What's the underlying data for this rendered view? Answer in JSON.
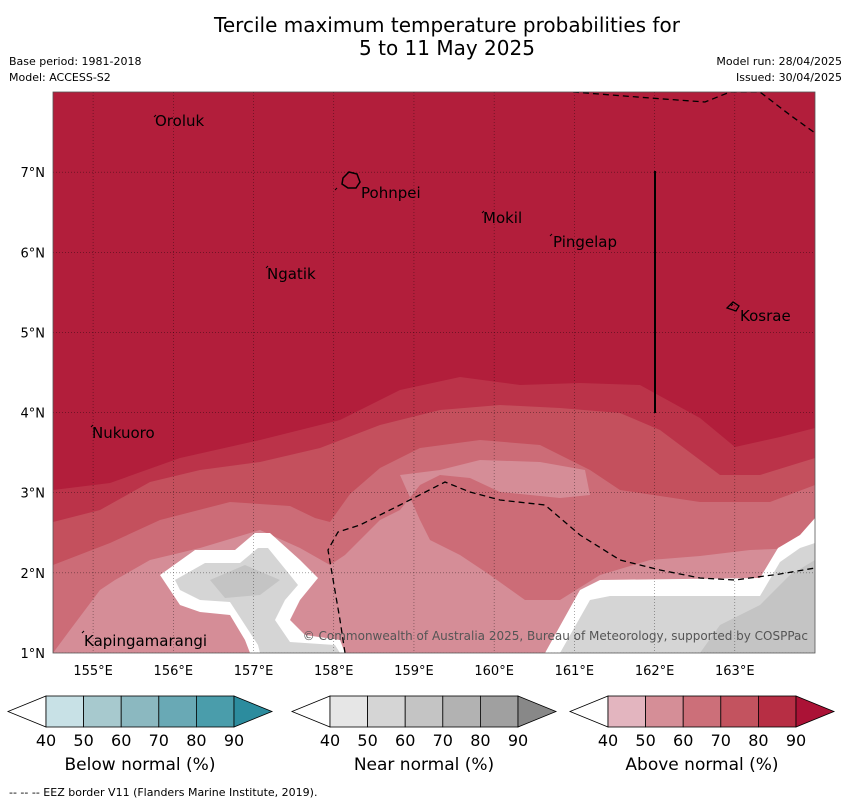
{
  "title_line1": "Tercile maximum temperature probabilities for",
  "title_line2": "5 to 11 May 2025",
  "meta": {
    "base_period": "Base period: 1981-2018",
    "model": "Model: ACCESS-S2",
    "model_run": "Model run: 28/04/2025",
    "issued": "Issued: 30/04/2025"
  },
  "map": {
    "lon_range": [
      154.5,
      164.0
    ],
    "lat_range": [
      1.0,
      8.0
    ],
    "lon_ticks": [
      "155°E",
      "156°E",
      "157°E",
      "158°E",
      "159°E",
      "160°E",
      "161°E",
      "162°E",
      "163°E"
    ],
    "lat_ticks": [
      "1°N",
      "2°N",
      "3°N",
      "4°N",
      "5°N",
      "6°N",
      "7°N"
    ],
    "places": [
      "Oroluk",
      "Pohnpei",
      "Mokil",
      "Pingelap",
      "Ngatik",
      "Kosrae",
      "Nukuoro",
      "Kapingamarangi"
    ],
    "copyright": "© Commonwealth of Australia 2025, Bureau of Meteorology, supported by COSPPac"
  },
  "colorbars": [
    {
      "name": "Below normal (%)",
      "ticks": [
        "40",
        "50",
        "60",
        "70",
        "80",
        "90"
      ],
      "colors": [
        "#ffffff",
        "#c8e1e6",
        "#a7c9ce",
        "#8bb8c0",
        "#69a9b5",
        "#4a9dab",
        "#2c8c9e"
      ]
    },
    {
      "name": "Near normal (%)",
      "ticks": [
        "40",
        "50",
        "60",
        "70",
        "80",
        "90"
      ],
      "colors": [
        "#ffffff",
        "#e6e6e6",
        "#d5d5d5",
        "#c4c4c4",
        "#b2b2b2",
        "#a0a0a0",
        "#888888"
      ]
    },
    {
      "name": "Above normal (%)",
      "ticks": [
        "40",
        "50",
        "60",
        "70",
        "80",
        "90"
      ],
      "colors": [
        "#ffffff",
        "#e3b5bf",
        "#d58e97",
        "#cc6f79",
        "#c3535f",
        "#b72e44",
        "#ab1236"
      ]
    }
  ],
  "footer": "--  --  -- EEZ border V11 (Flanders Marine Institute, 2019)."
}
